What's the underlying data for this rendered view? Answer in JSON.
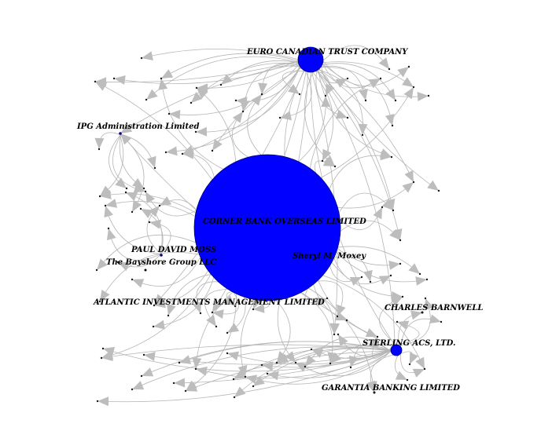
{
  "diagram": {
    "type": "network-graph",
    "colors": {
      "node": "#0000ff",
      "edge": "#b5b5b5",
      "arrow": "#bdbdbd",
      "background": "#ffffff"
    },
    "nodes": [
      {
        "id": "corner",
        "label": "CORNER BANK OVERSEAS LIMITED"
      },
      {
        "id": "euro",
        "label": "EURO CANADIAN TRUST COMPANY"
      },
      {
        "id": "sterling",
        "label": "STERLING ACS, LTD."
      },
      {
        "id": "ipg",
        "label": "IPG Administration Limited"
      },
      {
        "id": "paul",
        "label": "PAUL DAVID MOSS"
      },
      {
        "id": "bayshore",
        "label": "The Bayshore Group LLC"
      },
      {
        "id": "sheryl",
        "label": "Sheryl M. Moxey"
      },
      {
        "id": "atlantic",
        "label": "ATLANTIC INVESTMENTS MANAGEMENT LIMITED"
      },
      {
        "id": "charles",
        "label": "CHARLES BARNWELL"
      },
      {
        "id": "garantia",
        "label": "GARANTIA BANKING LIMITED"
      }
    ]
  }
}
